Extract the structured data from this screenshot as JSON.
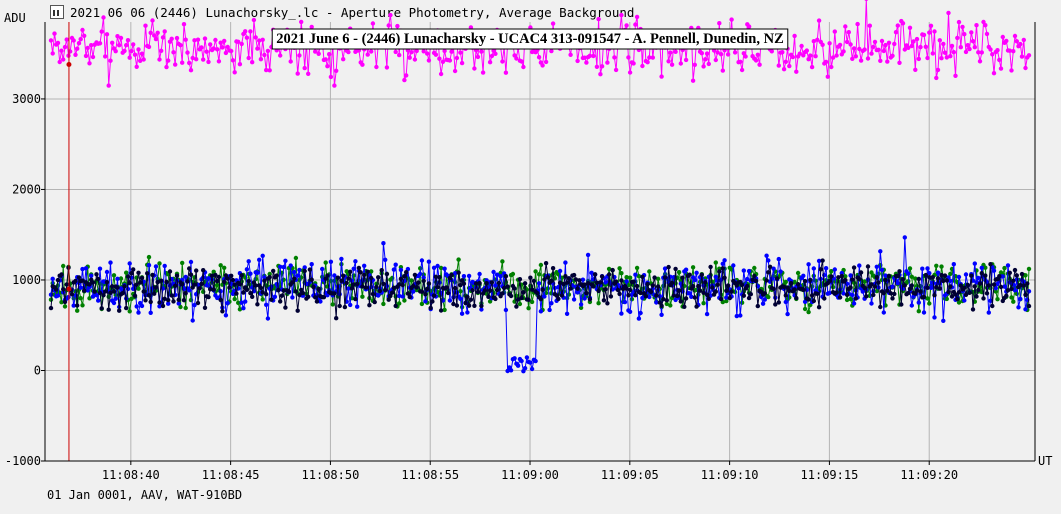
{
  "window": {
    "title": "2021 06 06 (2446) Lunachorsky_.lc - Aperture Photometry, Average Background",
    "icon": "lightcurve-app-icon"
  },
  "caption": "01 Jan 0001, AAV, WAT-910BD",
  "chart_data": {
    "type": "line",
    "title": "2021 June 6 - (2446) Lunacharsky - UCAC4 313-091547 - A. Pennell, Dunedin, NZ",
    "ylabel": "ADU",
    "xlabel": "UT",
    "ylim": [
      -1000,
      3850
    ],
    "yticks": [
      -1000,
      0,
      1000,
      2000,
      3000
    ],
    "xlim": [
      35.7,
      85.3
    ],
    "xtick_values": [
      40,
      45,
      50,
      55,
      60,
      65,
      70,
      75,
      80
    ],
    "xtick_labels": [
      "11:08:40",
      "11:08:45",
      "11:08:50",
      "11:08:55",
      "11:09:00",
      "11:09:05",
      "11:09:10",
      "11:09:15",
      "11:09:20"
    ],
    "x_units": "seconds after 11:08:00",
    "grid": true,
    "marker_x": 36.9,
    "marker_color": "#cc0000",
    "event": {
      "start": 58.8,
      "end": 60.3,
      "level": 50
    },
    "series": [
      {
        "color": "#ff00ff",
        "level": 3570,
        "scatter": 320,
        "seed": 7
      },
      {
        "color": "#008000",
        "level": 930,
        "scatter": 260,
        "seed": 11
      },
      {
        "color": "#0000ff",
        "level": 930,
        "scatter": 320,
        "seed": 23,
        "has_event": true
      },
      {
        "color": "#000033",
        "level": 920,
        "scatter": 230,
        "seed": 31
      }
    ]
  }
}
